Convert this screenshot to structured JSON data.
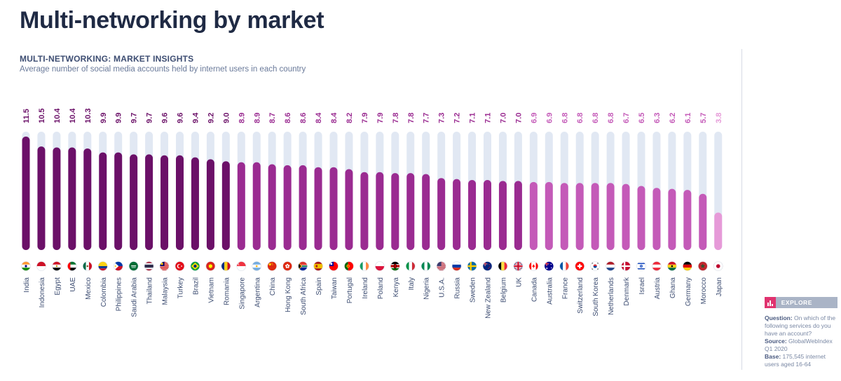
{
  "page": {
    "title": "Multi-networking by market"
  },
  "chart_data": {
    "type": "bar",
    "title": "MULTI-NETWORKING: MARKET INSIGHTS",
    "subtitle": "Average number of social media accounts held by internet users in each country",
    "xlabel": "",
    "ylabel": "",
    "ylim": [
      0,
      12
    ],
    "grid": false,
    "legend": "none",
    "categories": [
      "India",
      "Indonesia",
      "Egypt",
      "UAE",
      "Mexico",
      "Colombia",
      "Philippines",
      "Saudi Arabia",
      "Thailand",
      "Malaysia",
      "Turkey",
      "Brazil",
      "Vietnam",
      "Romania",
      "Singapore",
      "Argentina",
      "China",
      "Hong Kong",
      "South Africa",
      "Spain",
      "Taiwan",
      "Portugal",
      "Ireland",
      "Poland",
      "Kenya",
      "Italy",
      "Nigeria",
      "U.S.A.",
      "Russia",
      "Sweden",
      "New Zealand",
      "Belgium",
      "UK",
      "Canada",
      "Australia",
      "France",
      "Switzerland",
      "South Korea",
      "Netherlands",
      "Denmark",
      "Israel",
      "Austria",
      "Ghana",
      "Germany",
      "Morocco",
      "Japan"
    ],
    "values": [
      11.5,
      10.5,
      10.4,
      10.4,
      10.3,
      9.9,
      9.9,
      9.7,
      9.7,
      9.6,
      9.6,
      9.4,
      9.2,
      9.0,
      8.9,
      8.9,
      8.7,
      8.6,
      8.6,
      8.4,
      8.4,
      8.2,
      7.9,
      7.9,
      7.8,
      7.8,
      7.7,
      7.3,
      7.2,
      7.1,
      7.1,
      7.0,
      7.0,
      6.9,
      6.9,
      6.8,
      6.8,
      6.8,
      6.8,
      6.7,
      6.5,
      6.3,
      6.2,
      6.1,
      5.7,
      3.8
    ],
    "value_labels": [
      "11.5",
      "10.5",
      "10.4",
      "10.4",
      "10.3",
      "9.9",
      "9.9",
      "9.7",
      "9.7",
      "9.6",
      "9.6",
      "9.4",
      "9.2",
      "9.0",
      "8.9",
      "8.9",
      "8.7",
      "8.6",
      "8.6",
      "8.4",
      "8.4",
      "8.2",
      "7.9",
      "7.9",
      "7.8",
      "7.8",
      "7.7",
      "7.3",
      "7.2",
      "7.1",
      "7.1",
      "7.0",
      "7.0",
      "6.9",
      "6.9",
      "6.8",
      "6.8",
      "6.8",
      "6.8",
      "6.7",
      "6.5",
      "6.3",
      "6.2",
      "6.1",
      "5.7",
      "3.8"
    ],
    "colors": {
      "track": "#e1e8f3",
      "tier1": "#6b1068",
      "tier2": "#9a2b91",
      "tier3": "#c45ab8",
      "tier4": "#e69ad8"
    },
    "flags": [
      "india",
      "indonesia",
      "egypt",
      "uae",
      "mexico",
      "colombia",
      "philippines",
      "saudi-arabia",
      "thailand",
      "malaysia",
      "turkey",
      "brazil",
      "vietnam",
      "romania",
      "singapore",
      "argentina",
      "china",
      "hong-kong",
      "south-africa",
      "spain",
      "taiwan",
      "portugal",
      "ireland",
      "poland",
      "kenya",
      "italy",
      "nigeria",
      "usa",
      "russia",
      "sweden",
      "new-zealand",
      "belgium",
      "uk",
      "canada",
      "australia",
      "france",
      "switzerland",
      "south-korea",
      "netherlands",
      "denmark",
      "israel",
      "austria",
      "ghana",
      "germany",
      "morocco",
      "japan"
    ]
  },
  "side_panel": {
    "explore_label": "EXPLORE DATA",
    "explore_icon": "bar-chart-icon",
    "question_label": "Question:",
    "question_text": "On which of the following services do you have an account?",
    "source_label": "Source:",
    "source_text": "GlobalWebIndex Q1 2020",
    "base_label": "Base:",
    "base_text": "175,545 internet users aged 16-64"
  }
}
